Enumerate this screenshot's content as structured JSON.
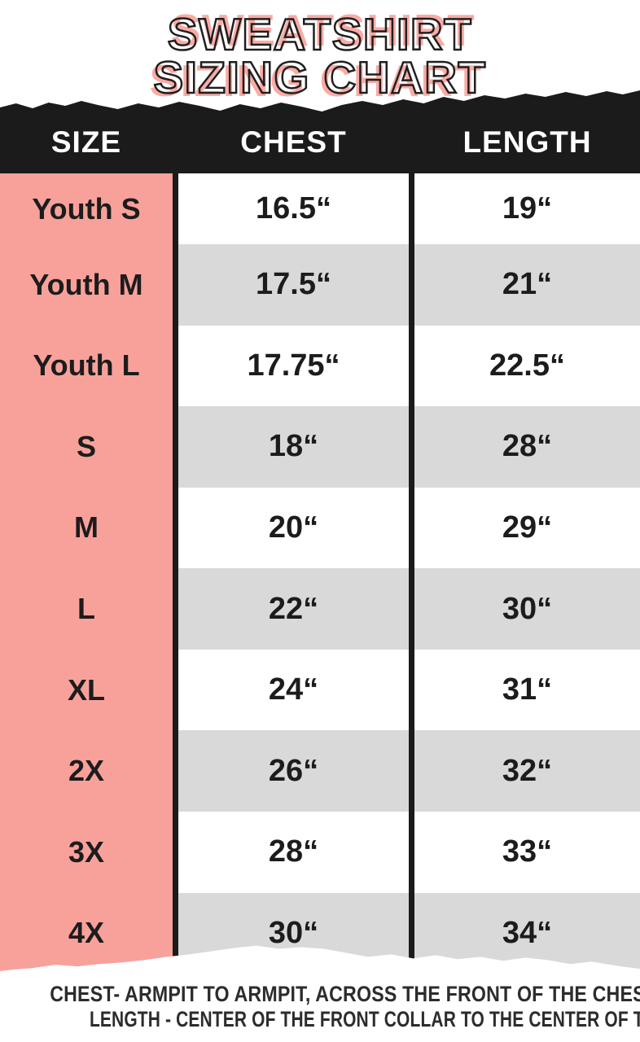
{
  "title": {
    "line1": "SWEATSHIRT",
    "line2": "SIZING CHART"
  },
  "header": {
    "col_size": "SIZE",
    "col_chest": "CHEST",
    "col_length": "LENGTH"
  },
  "rows": [
    {
      "size": "Youth S",
      "chest": "16.5“",
      "length": "19“"
    },
    {
      "size": "Youth M",
      "chest": "17.5“",
      "length": "21“"
    },
    {
      "size": "Youth L",
      "chest": "17.75“",
      "length": "22.5“"
    },
    {
      "size": "S",
      "chest": "18“",
      "length": "28“"
    },
    {
      "size": "M",
      "chest": "20“",
      "length": "29“"
    },
    {
      "size": "L",
      "chest": "22“",
      "length": "30“"
    },
    {
      "size": "XL",
      "chest": "24“",
      "length": "31“"
    },
    {
      "size": "2X",
      "chest": "26“",
      "length": "32“"
    },
    {
      "size": "3X",
      "chest": "28“",
      "length": "33“"
    },
    {
      "size": "4X",
      "chest": "30“",
      "length": "34“"
    }
  ],
  "footer": {
    "line1": "CHEST- ARMPIT TO ARMPIT, ACROSS THE FRONT OF THE CHEST",
    "line2": "LENGTH - CENTER OF THE FRONT COLLAR TO THE CENTER OF THE TAIL"
  },
  "colors": {
    "pink": "#F8A19B",
    "title_pink": "#F9ABA4",
    "gray": "#D9D9D9",
    "bar_black": "#1C1B1B",
    "ink": "#1C1C1C",
    "footer_ink": "#2C2C2C"
  },
  "chart_data": {
    "type": "table",
    "title": "SWEATSHIRT SIZING CHART",
    "columns": [
      "SIZE",
      "CHEST",
      "LENGTH"
    ],
    "rows": [
      [
        "Youth S",
        "16.5“",
        "19“"
      ],
      [
        "Youth M",
        "17.5“",
        "21“"
      ],
      [
        "Youth L",
        "17.75“",
        "22.5“"
      ],
      [
        "S",
        "18“",
        "28“"
      ],
      [
        "M",
        "20“",
        "29“"
      ],
      [
        "L",
        "22“",
        "30“"
      ],
      [
        "XL",
        "24“",
        "31“"
      ],
      [
        "2X",
        "26“",
        "32“"
      ],
      [
        "3X",
        "28“",
        "33“"
      ],
      [
        "4X",
        "30“",
        "34“"
      ]
    ],
    "notes": [
      "CHEST- ARMPIT TO ARMPIT, ACROSS THE FRONT OF THE CHEST",
      "LENGTH - CENTER OF THE FRONT COLLAR TO THE CENTER OF THE TAIL"
    ],
    "layout_hints": {
      "row_stripes": "alternating white and gray value cells",
      "size_column_fill": "pink",
      "torn_paper_edges": [
        "top of header bar",
        "bottom of table"
      ]
    }
  }
}
